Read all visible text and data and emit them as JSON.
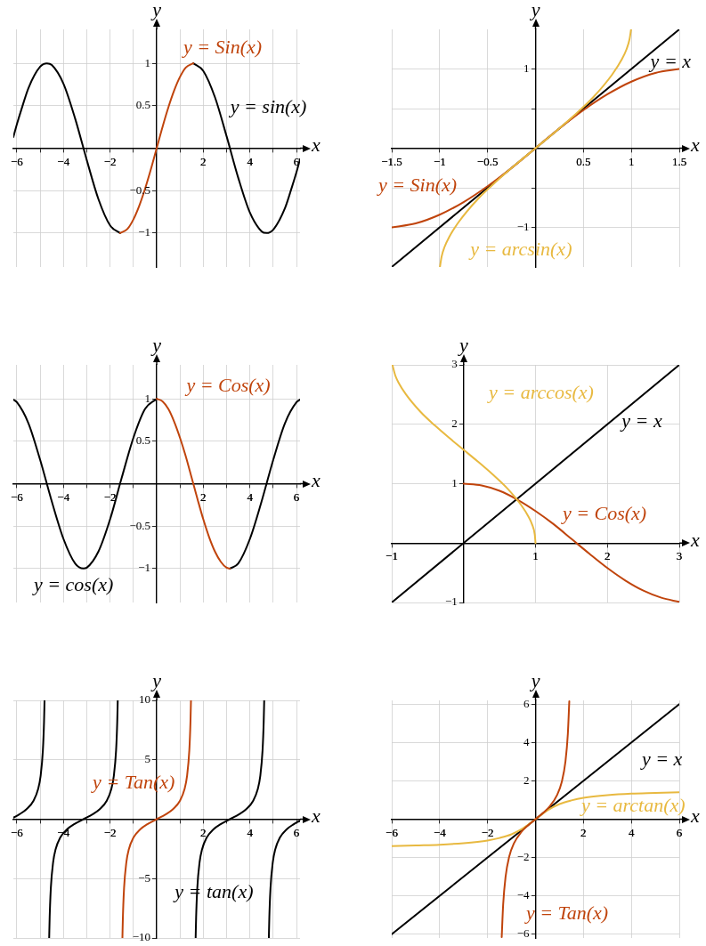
{
  "chart_data": [
    {
      "type": "line",
      "xlabel": "x",
      "ylabel": "y",
      "grid": true,
      "marker": "none",
      "xlim": [
        -6.15,
        6.15
      ],
      "ylim": [
        -1.4,
        1.4
      ],
      "xticks": [
        -6,
        {
          "value": -5,
          "label": null
        },
        -4,
        {
          "value": -3,
          "label": null
        },
        -2,
        {
          "value": -1,
          "label": null
        },
        {
          "value": 1,
          "label": null
        },
        2,
        {
          "value": 3,
          "label": null
        },
        4,
        {
          "value": 5,
          "label": null
        },
        6
      ],
      "yticks": [
        -1,
        -0.5,
        0.5,
        1
      ],
      "series": [
        {
          "name": "y = sin(x)",
          "color": "#000000",
          "x": [
            -6.15,
            -6,
            -5.8,
            -5.5,
            -5,
            -4.712,
            -4.5,
            -4,
            -3.5,
            -3,
            -2.5,
            -2,
            -1.571,
            -1,
            -0.5,
            0,
            0.5,
            1,
            1.571,
            2,
            2.5,
            3,
            3.5,
            4,
            4.5,
            4.712,
            5,
            5.5,
            5.8,
            6,
            6.15
          ],
          "values": [
            0.13,
            0.28,
            0.46,
            0.71,
            0.96,
            1,
            0.98,
            0.76,
            0.35,
            -0.14,
            -0.6,
            -0.91,
            -1,
            null,
            null,
            null,
            null,
            null,
            1,
            0.91,
            0.6,
            0.14,
            -0.35,
            -0.76,
            -0.98,
            -1,
            -0.96,
            -0.71,
            -0.46,
            -0.28,
            -0.13
          ]
        },
        {
          "name": "y = Sin(x)",
          "color": "#c0440c",
          "x": [
            -1.571,
            -1.25,
            -1,
            -0.75,
            -0.5,
            -0.25,
            0,
            0.25,
            0.5,
            0.75,
            1,
            1.25,
            1.571
          ],
          "values": [
            -1,
            -0.95,
            -0.84,
            -0.68,
            -0.48,
            -0.25,
            0,
            0.25,
            0.48,
            0.68,
            0.84,
            0.95,
            1
          ]
        }
      ]
    },
    {
      "type": "line",
      "xlabel": "x",
      "ylabel": "y",
      "grid": true,
      "marker": "none",
      "xlim": [
        -1.5,
        1.5
      ],
      "ylim": [
        -1.5,
        1.5
      ],
      "xticks": [
        -1.5,
        -1,
        -0.5,
        0.5,
        1,
        1.5
      ],
      "yticks": [
        -1,
        {
          "value": -0.5,
          "label": null
        },
        {
          "value": 0.5,
          "label": null
        },
        1
      ],
      "series": [
        {
          "name": "y = x",
          "color": "#000000",
          "x": [
            -1.5,
            1.5
          ],
          "values": [
            -1.5,
            1.5
          ]
        },
        {
          "name": "y = Sin(x)",
          "color": "#c0440c",
          "x": [
            -1.5,
            -1.25,
            -1,
            -0.75,
            -0.5,
            -0.25,
            0,
            0.25,
            0.5,
            0.75,
            1,
            1.25,
            1.5
          ],
          "values": [
            -1,
            -0.95,
            -0.84,
            -0.68,
            -0.48,
            -0.25,
            0,
            0.25,
            0.48,
            0.68,
            0.84,
            0.95,
            1
          ]
        },
        {
          "name": "y = arcsin(x)",
          "color": "#e8b940",
          "x": [
            -0.997,
            -0.98,
            -0.95,
            -0.9,
            -0.8,
            -0.6,
            -0.4,
            -0.2,
            0,
            0.2,
            0.4,
            0.6,
            0.8,
            0.9,
            0.95,
            0.98,
            0.997
          ],
          "values": [
            -1.5,
            -1.37,
            -1.25,
            -1.12,
            -0.93,
            -0.64,
            -0.41,
            -0.2,
            0,
            0.2,
            0.41,
            0.64,
            0.93,
            1.12,
            1.25,
            1.37,
            1.5
          ]
        }
      ]
    },
    {
      "type": "line",
      "xlabel": "x",
      "ylabel": "y",
      "grid": true,
      "marker": "none",
      "xlim": [
        -6.15,
        6.15
      ],
      "ylim": [
        -1.4,
        1.4
      ],
      "xticks": [
        -6,
        {
          "value": -5,
          "label": null
        },
        -4,
        {
          "value": -3,
          "label": null
        },
        -2,
        {
          "value": -1,
          "label": null
        },
        {
          "value": 1,
          "label": null
        },
        2,
        {
          "value": 3,
          "label": null
        },
        4,
        {
          "value": 5,
          "label": null
        },
        6
      ],
      "yticks": [
        -1,
        -0.5,
        0.5,
        1
      ],
      "series": [
        {
          "name": "y = cos(x)",
          "color": "#000000",
          "x": [
            -6.15,
            -6,
            -5.5,
            -5,
            -4.5,
            -4,
            -3.5,
            -3.142,
            -3,
            -2.5,
            -2,
            -1.5,
            -1,
            -0.5,
            0,
            0.5,
            1,
            1.5,
            2,
            2.5,
            3,
            3.142,
            3.5,
            4,
            4.5,
            5,
            5.5,
            6,
            6.15
          ],
          "values": [
            0.99,
            0.96,
            0.71,
            0.28,
            -0.21,
            -0.65,
            -0.94,
            -1,
            -0.99,
            -0.8,
            -0.42,
            0.07,
            0.54,
            0.88,
            1,
            null,
            null,
            null,
            null,
            null,
            null,
            -1,
            -0.94,
            -0.65,
            -0.21,
            0.28,
            0.71,
            0.96,
            0.99
          ]
        },
        {
          "name": "y = Cos(x)",
          "color": "#c0440c",
          "x": [
            0,
            0.25,
            0.5,
            0.75,
            1,
            1.25,
            1.5,
            1.75,
            2,
            2.25,
            2.5,
            2.75,
            3,
            3.142
          ],
          "values": [
            1,
            0.97,
            0.88,
            0.73,
            0.54,
            0.32,
            0.07,
            -0.18,
            -0.42,
            -0.63,
            -0.8,
            -0.92,
            -0.99,
            -1
          ]
        }
      ]
    },
    {
      "type": "line",
      "xlabel": "x",
      "ylabel": "y",
      "grid": true,
      "marker": "none",
      "xlim": [
        -1,
        3
      ],
      "ylim": [
        -1,
        3
      ],
      "xticks": [
        -1,
        1,
        2,
        3
      ],
      "yticks": [
        -1,
        1,
        2,
        3
      ],
      "series": [
        {
          "name": "y = x",
          "color": "#000000",
          "x": [
            -1,
            3
          ],
          "values": [
            -1,
            3
          ]
        },
        {
          "name": "y = Cos(x)",
          "color": "#c0440c",
          "x": [
            0,
            0.25,
            0.5,
            0.75,
            1,
            1.25,
            1.5,
            1.75,
            2,
            2.25,
            2.5,
            2.75,
            3
          ],
          "values": [
            1,
            0.97,
            0.88,
            0.73,
            0.54,
            0.32,
            0.07,
            -0.18,
            -0.42,
            -0.63,
            -0.8,
            -0.92,
            -0.99
          ]
        },
        {
          "name": "y = arccos(x)",
          "color": "#e8b940",
          "x": [
            -0.99,
            -0.95,
            -0.9,
            -0.8,
            -0.6,
            -0.4,
            -0.2,
            0,
            0.2,
            0.4,
            0.6,
            0.8,
            0.9,
            0.95,
            0.99,
            1
          ],
          "values": [
            3,
            2.82,
            2.69,
            2.5,
            2.21,
            1.98,
            1.77,
            1.57,
            1.37,
            1.16,
            0.93,
            0.64,
            0.45,
            0.32,
            0.14,
            0
          ]
        }
      ]
    },
    {
      "type": "line",
      "xlabel": "x",
      "ylabel": "y",
      "grid": true,
      "marker": "none",
      "xlim": [
        -6.15,
        6.15
      ],
      "ylim": [
        -10,
        10
      ],
      "xticks": [
        -6,
        {
          "value": -5,
          "label": null
        },
        -4,
        {
          "value": -3,
          "label": null
        },
        -2,
        {
          "value": -1,
          "label": null
        },
        {
          "value": 1,
          "label": null
        },
        2,
        {
          "value": 3,
          "label": null
        },
        4,
        {
          "value": 5,
          "label": null
        },
        6
      ],
      "yticks": [
        -10,
        -5,
        5,
        10
      ],
      "series": [
        {
          "name": "y = tan(x)",
          "color": "#000000",
          "x": [
            -6.15,
            -5.883,
            -5.583,
            -5.283,
            -5.083,
            -4.983,
            -4.883,
            -4.833,
            -4.812,
            -4.712,
            -4.613,
            -4.592,
            -4.542,
            -4.442,
            -4.342,
            -4.142,
            -3.842,
            -3.542,
            -3.142,
            -2.742,
            -2.442,
            -2.142,
            -1.942,
            -1.842,
            -1.742,
            -1.692,
            -1.671,
            -1.571,
            -1.471,
            -1.45,
            -1.4,
            -1.3,
            -1.2,
            -1,
            -0.7,
            -0.4,
            0,
            0.4,
            0.7,
            1,
            1.2,
            1.3,
            1.4,
            1.45,
            1.471,
            1.571,
            1.671,
            1.692,
            1.742,
            1.842,
            1.942,
            2.142,
            2.442,
            2.742,
            3.142,
            3.542,
            3.842,
            4.142,
            4.342,
            4.442,
            4.542,
            4.592,
            4.613,
            4.712,
            4.812,
            4.833,
            4.883,
            4.983,
            5.083,
            5.283,
            5.583,
            5.883,
            6.15
          ],
          "values": [
            0.13,
            0.42,
            0.84,
            1.56,
            2.57,
            3.6,
            5.8,
            8.24,
            10,
            null,
            -10,
            -8.24,
            -5.8,
            -3.6,
            -2.57,
            -1.56,
            -0.84,
            -0.42,
            0,
            0.42,
            0.84,
            1.56,
            2.57,
            3.6,
            5.8,
            8.24,
            10,
            null,
            null,
            null,
            null,
            null,
            null,
            null,
            null,
            null,
            null,
            null,
            null,
            null,
            null,
            null,
            null,
            null,
            null,
            null,
            -10,
            -8.24,
            -5.8,
            -3.6,
            -2.57,
            -1.56,
            -0.84,
            -0.42,
            0,
            0.42,
            0.84,
            1.56,
            2.57,
            3.6,
            5.8,
            8.24,
            10,
            null,
            -10,
            -8.24,
            -5.8,
            -3.6,
            -2.57,
            -1.56,
            -0.84,
            -0.42,
            -0.13
          ]
        },
        {
          "name": "y = Tan(x)",
          "color": "#c0440c",
          "x": [
            -1.471,
            -1.45,
            -1.4,
            -1.3,
            -1.2,
            -1,
            -0.7,
            -0.4,
            0,
            0.4,
            0.7,
            1,
            1.2,
            1.3,
            1.4,
            1.45,
            1.471
          ],
          "values": [
            -10,
            -8.24,
            -5.8,
            -3.6,
            -2.57,
            -1.56,
            -0.84,
            -0.42,
            0,
            0.42,
            0.84,
            1.56,
            2.57,
            3.6,
            5.8,
            8.24,
            10
          ]
        }
      ]
    },
    {
      "type": "line",
      "xlabel": "x",
      "ylabel": "y",
      "grid": true,
      "marker": "none",
      "xlim": [
        -6,
        6
      ],
      "ylim": [
        -6.2,
        6.2
      ],
      "xticks": [
        -6,
        -4,
        -2,
        2,
        4,
        6
      ],
      "yticks": [
        -6,
        -4,
        -2,
        2,
        4,
        6
      ],
      "series": [
        {
          "name": "y = x",
          "color": "#000000",
          "x": [
            -6,
            6
          ],
          "values": [
            -6,
            6
          ]
        },
        {
          "name": "y = arctan(x)",
          "color": "#e8b940",
          "x": [
            -6,
            -5,
            -4,
            -3,
            -2,
            -1.5,
            -1,
            -0.5,
            0,
            0.5,
            1,
            1.5,
            2,
            3,
            4,
            5,
            6
          ],
          "values": [
            -1.41,
            -1.37,
            -1.33,
            -1.25,
            -1.11,
            -0.98,
            -0.79,
            -0.46,
            0,
            0.46,
            0.79,
            0.98,
            1.11,
            1.25,
            1.33,
            1.37,
            1.41
          ]
        },
        {
          "name": "y = Tan(x)",
          "color": "#c0440c",
          "x": [
            -1.41,
            -1.35,
            -1.25,
            -1.1,
            -0.9,
            -0.6,
            -0.3,
            0,
            0.3,
            0.6,
            0.9,
            1.1,
            1.25,
            1.35,
            1.41
          ],
          "values": [
            -6.15,
            -4.46,
            -3.01,
            -1.96,
            -1.26,
            -0.68,
            -0.31,
            0,
            0.31,
            0.68,
            1.26,
            1.96,
            3.01,
            4.46,
            6.15
          ]
        }
      ]
    }
  ]
}
